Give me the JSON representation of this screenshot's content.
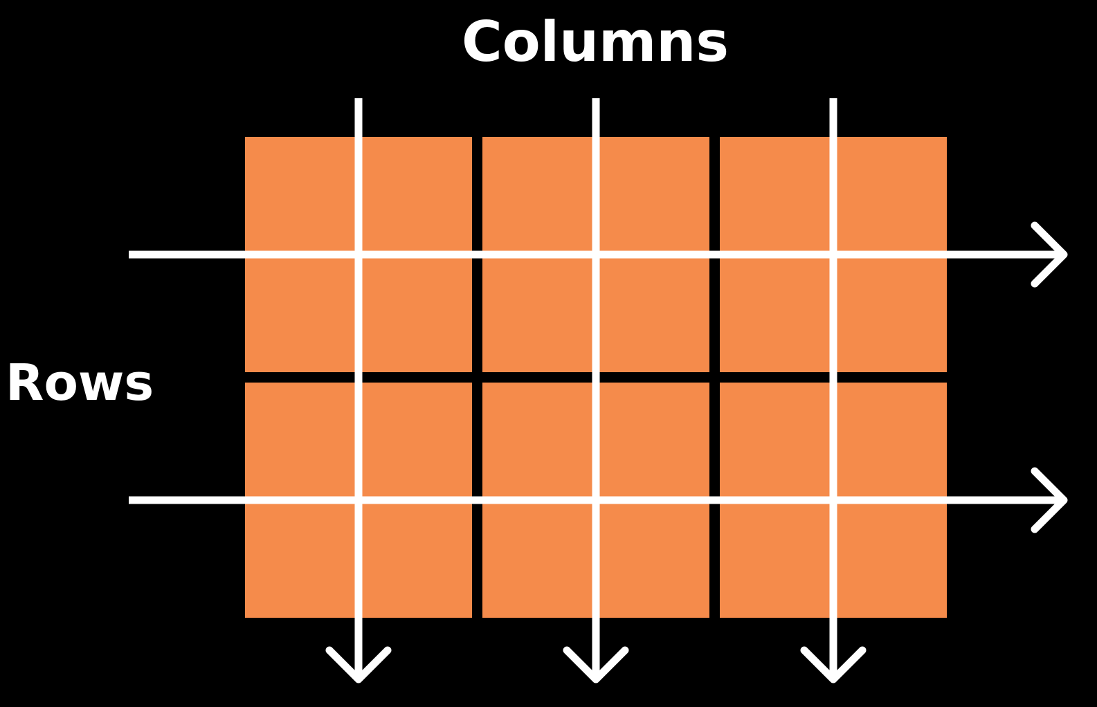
{
  "labels": {
    "columns": "Columns",
    "rows": "Rows"
  },
  "grid": {
    "rows": 2,
    "columns": 3,
    "cell_color": "#F58B4B",
    "arrow_color": "#FFFFFF",
    "background": "#000000"
  }
}
